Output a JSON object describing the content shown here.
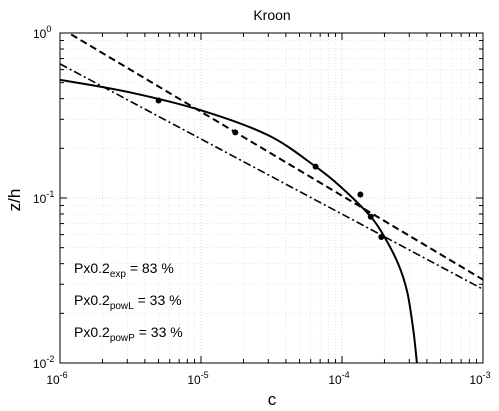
{
  "chart_data": {
    "type": "scatter",
    "title": "Kroon",
    "xlabel": "c",
    "ylabel": "z/h",
    "xscale": "log",
    "yscale": "log",
    "xlim": [
      1e-06,
      0.001
    ],
    "ylim": [
      0.01,
      1
    ],
    "grid": true,
    "x_ticks": [
      {
        "base": "10",
        "exp": "-6"
      },
      {
        "base": "10",
        "exp": "-5"
      },
      {
        "base": "10",
        "exp": "-4"
      },
      {
        "base": "10",
        "exp": "-3"
      }
    ],
    "y_ticks": [
      {
        "base": "10",
        "exp": "-2"
      },
      {
        "base": "10",
        "exp": "-1"
      },
      {
        "base": "10",
        "exp": "0"
      }
    ],
    "points": [
      {
        "x": 5e-06,
        "y": 0.39
      },
      {
        "x": 1.75e-05,
        "y": 0.25
      },
      {
        "x": 6.5e-05,
        "y": 0.155
      },
      {
        "x": 0.000135,
        "y": 0.105
      },
      {
        "x": 0.00016,
        "y": 0.077
      },
      {
        "x": 0.00019,
        "y": 0.058
      }
    ],
    "series": [
      {
        "style": "solid",
        "values": [
          {
            "x": 1e-06,
            "y": 0.52
          },
          {
            "x": 3e-06,
            "y": 0.44
          },
          {
            "x": 1e-05,
            "y": 0.34
          },
          {
            "x": 3e-05,
            "y": 0.24
          },
          {
            "x": 6.5e-05,
            "y": 0.155
          },
          {
            "x": 0.0001,
            "y": 0.115
          },
          {
            "x": 0.00016,
            "y": 0.077
          },
          {
            "x": 0.0002,
            "y": 0.058
          },
          {
            "x": 0.00025,
            "y": 0.04
          },
          {
            "x": 0.00029,
            "y": 0.027
          },
          {
            "x": 0.00032,
            "y": 0.016
          },
          {
            "x": 0.00034,
            "y": 0.01
          }
        ]
      },
      {
        "style": "dashed",
        "values": [
          {
            "x": 1.2e-06,
            "y": 0.98
          },
          {
            "x": 0.001,
            "y": 0.032
          }
        ]
      },
      {
        "style": "dashdot",
        "values": [
          {
            "x": 1e-06,
            "y": 0.65
          },
          {
            "x": 0.001,
            "y": 0.028
          }
        ]
      }
    ],
    "annotations": [
      {
        "main": "Px0.2",
        "sub": "exp",
        "value": "= 83 %"
      },
      {
        "main": "Px0.2",
        "sub": "powL",
        "value": "= 33 %"
      },
      {
        "main": "Px0.2",
        "sub": "powP",
        "value": "= 33 %"
      }
    ]
  }
}
